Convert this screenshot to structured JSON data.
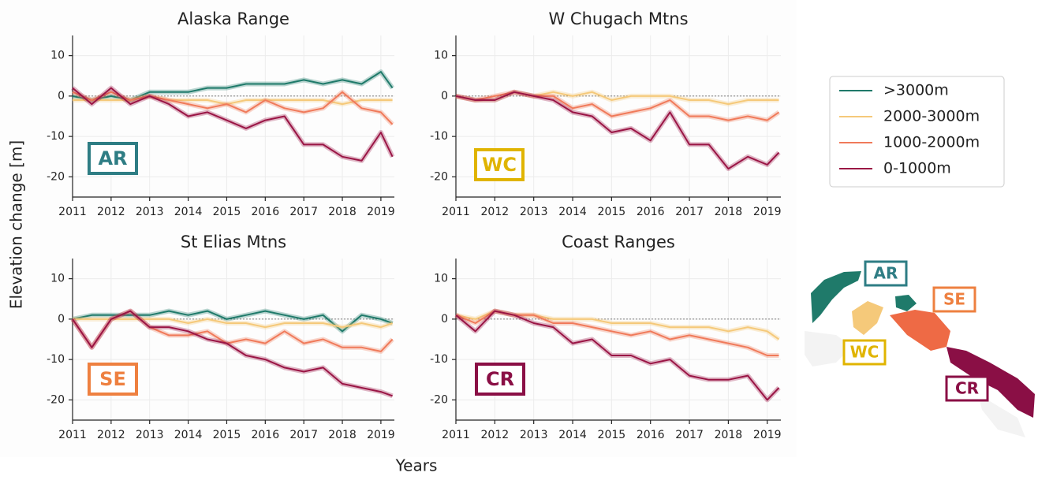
{
  "chart_data": [
    {
      "type": "line",
      "title": "Alaska Range",
      "badge": "AR",
      "badge_color": "#2e7d84",
      "x": [
        2011,
        2011.5,
        2012,
        2012.5,
        2013,
        2013.5,
        2014,
        2014.5,
        2015,
        2015.5,
        2016,
        2016.5,
        2017,
        2017.5,
        2018,
        2018.5,
        2019,
        2019.3
      ],
      "series": [
        {
          "name": ">3000m",
          "color": "#1f7a6a",
          "values": [
            0,
            -1,
            0,
            -1,
            1,
            1,
            1,
            2,
            2,
            3,
            3,
            3,
            4,
            3,
            4,
            3,
            6,
            2
          ]
        },
        {
          "name": "2000-3000m",
          "color": "#f5c97a",
          "values": [
            -1,
            -1,
            -1,
            -1,
            0,
            -1,
            -1,
            -1,
            -2,
            -1,
            -1,
            -1,
            -1,
            -1,
            -2,
            -1,
            -1,
            -1
          ]
        },
        {
          "name": "1000-2000m",
          "color": "#f07a5a",
          "values": [
            1,
            -1,
            1,
            -1,
            0,
            -1,
            -2,
            -3,
            -2,
            -4,
            -1,
            -3,
            -4,
            -3,
            1,
            -3,
            -4,
            -7
          ]
        },
        {
          "name": "0-1000m",
          "color": "#9a1545",
          "values": [
            2,
            -2,
            2,
            -2,
            0,
            -2,
            -5,
            -4,
            -6,
            -8,
            -6,
            -5,
            -12,
            -12,
            -15,
            -16,
            -9,
            -15
          ]
        }
      ],
      "xlim": [
        2011,
        2019.35
      ],
      "xticks": [
        2011,
        2012,
        2013,
        2014,
        2015,
        2016,
        2017,
        2018,
        2019
      ],
      "ylim": [
        -25,
        15
      ],
      "yticks": [
        -20,
        -10,
        0,
        10
      ],
      "reference_line": 0,
      "grid": true
    },
    {
      "type": "line",
      "title": "W Chugach Mtns",
      "badge": "WC",
      "badge_color": "#e0b400",
      "x": [
        2011,
        2011.5,
        2012,
        2012.5,
        2013,
        2013.5,
        2014,
        2014.5,
        2015,
        2015.5,
        2016,
        2016.5,
        2017,
        2017.5,
        2018,
        2018.5,
        2019,
        2019.3
      ],
      "series": [
        {
          "color": "#f5c97a",
          "values": [
            0,
            -1,
            -1,
            1,
            0,
            1,
            0,
            1,
            -1,
            0,
            0,
            0,
            -1,
            -1,
            -2,
            -1,
            -1,
            -1
          ]
        },
        {
          "color": "#f07a5a",
          "values": [
            0,
            -1,
            0,
            1,
            0,
            0,
            -3,
            -2,
            -5,
            -4,
            -3,
            -1,
            -5,
            -5,
            -6,
            -5,
            -6,
            -4
          ]
        },
        {
          "color": "#9a1545",
          "values": [
            0,
            -1,
            -1,
            1,
            0,
            -1,
            -4,
            -5,
            -9,
            -8,
            -11,
            -4,
            -12,
            -12,
            -18,
            -15,
            -17,
            -14
          ]
        }
      ],
      "xlim": [
        2011,
        2019.35
      ],
      "xticks": [
        2011,
        2012,
        2013,
        2014,
        2015,
        2016,
        2017,
        2018,
        2019
      ],
      "ylim": [
        -25,
        15
      ],
      "yticks": [
        -20,
        -10,
        0,
        10
      ],
      "reference_line": 0,
      "grid": true
    },
    {
      "type": "line",
      "title": "St Elias Mtns",
      "badge": "SE",
      "badge_color": "#ee8040",
      "x": [
        2011,
        2011.5,
        2012,
        2012.5,
        2013,
        2013.5,
        2014,
        2014.5,
        2015,
        2015.5,
        2016,
        2016.5,
        2017,
        2017.5,
        2018,
        2018.5,
        2019,
        2019.3
      ],
      "series": [
        {
          "color": "#1f7a6a",
          "values": [
            0,
            1,
            1,
            1,
            1,
            2,
            1,
            2,
            0,
            1,
            2,
            1,
            0,
            1,
            -3,
            1,
            0,
            -1
          ]
        },
        {
          "color": "#f5c97a",
          "values": [
            0,
            0,
            0,
            0,
            0,
            0,
            -1,
            0,
            -1,
            -1,
            -2,
            -1,
            -1,
            -1,
            -2,
            -1,
            -2,
            -1
          ]
        },
        {
          "color": "#f07a5a",
          "values": [
            0,
            -7,
            0,
            2,
            -2,
            -4,
            -4,
            -3,
            -6,
            -5,
            -6,
            -3,
            -6,
            -5,
            -7,
            -7,
            -8,
            -5
          ]
        },
        {
          "color": "#9a1545",
          "values": [
            0,
            -7,
            0,
            2,
            -2,
            -2,
            -3,
            -5,
            -6,
            -9,
            -10,
            -12,
            -13,
            -12,
            -16,
            -17,
            -18,
            -19
          ]
        }
      ],
      "xlim": [
        2011,
        2019.35
      ],
      "xticks": [
        2011,
        2012,
        2013,
        2014,
        2015,
        2016,
        2017,
        2018,
        2019
      ],
      "ylim": [
        -25,
        15
      ],
      "yticks": [
        -20,
        -10,
        0,
        10
      ],
      "reference_line": 0,
      "grid": true
    },
    {
      "type": "line",
      "title": "Coast Ranges",
      "badge": "CR",
      "badge_color": "#8a0f45",
      "x": [
        2011,
        2011.5,
        2012,
        2012.5,
        2013,
        2013.5,
        2014,
        2014.5,
        2015,
        2015.5,
        2016,
        2016.5,
        2017,
        2017.5,
        2018,
        2018.5,
        2019,
        2019.3
      ],
      "series": [
        {
          "color": "#f5c97a",
          "values": [
            1,
            0,
            2,
            1,
            1,
            0,
            0,
            0,
            -1,
            -1,
            -1,
            -2,
            -2,
            -2,
            -3,
            -2,
            -3,
            -5
          ]
        },
        {
          "color": "#f07a5a",
          "values": [
            1,
            -1,
            2,
            1,
            1,
            -1,
            -1,
            -2,
            -3,
            -4,
            -3,
            -5,
            -4,
            -5,
            -6,
            -7,
            -9,
            -9
          ]
        },
        {
          "color": "#9a1545",
          "values": [
            1,
            -3,
            2,
            1,
            -1,
            -2,
            -6,
            -5,
            -9,
            -9,
            -11,
            -10,
            -14,
            -15,
            -15,
            -14,
            -20,
            -17
          ]
        }
      ],
      "xlim": [
        2011,
        2019.35
      ],
      "xticks": [
        2011,
        2012,
        2013,
        2014,
        2015,
        2016,
        2017,
        2018,
        2019
      ],
      "ylim": [
        -25,
        15
      ],
      "yticks": [
        -20,
        -10,
        0,
        10
      ],
      "reference_line": 0,
      "grid": true
    }
  ],
  "y_label": "Elevation change [m]",
  "x_label": "Years",
  "map": {
    "labels": [
      {
        "text": "AR",
        "color": "#2e7d84"
      },
      {
        "text": "SE",
        "color": "#ee8040"
      },
      {
        "text": "WC",
        "color": "#e0b400"
      },
      {
        "text": "CR",
        "color": "#8a0f45"
      }
    ]
  }
}
